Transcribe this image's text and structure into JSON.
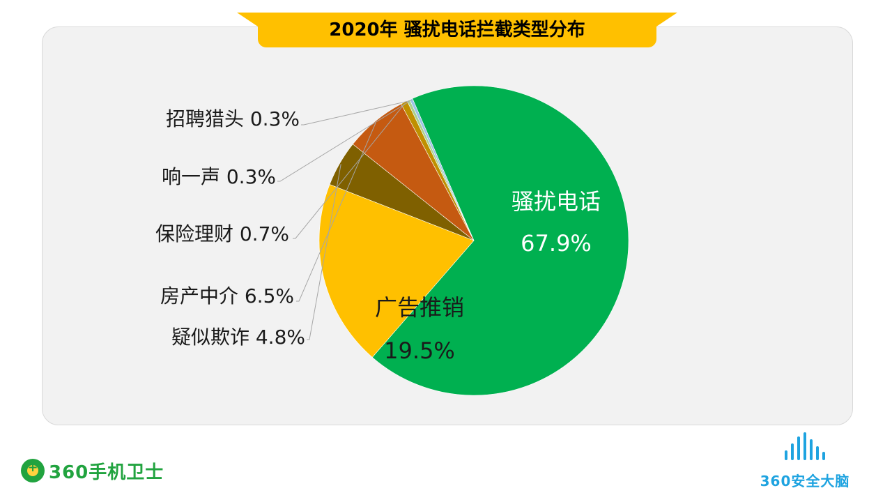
{
  "title": "2020年 骚扰电话拦截类型分布",
  "colors": {
    "title_bg": "#ffc000",
    "panel_bg": "#f2f2f2",
    "brand_green": "#21a33f",
    "brand_blue": "#1ea3e0"
  },
  "chart_data": {
    "type": "pie",
    "slices": [
      {
        "label": "骚扰电话",
        "value": 67.9,
        "value_text": "67.9%",
        "color": "#00b050",
        "label_style": "inside-light"
      },
      {
        "label": "广告推销",
        "value": 19.5,
        "value_text": "19.5%",
        "color": "#ffc000",
        "label_style": "inside-dark"
      },
      {
        "label": "疑似欺诈",
        "value": 4.8,
        "value_text": "4.8%",
        "color": "#7f6000",
        "label_style": "outside"
      },
      {
        "label": "房产中介",
        "value": 6.5,
        "value_text": "6.5%",
        "color": "#c55a11",
        "label_style": "outside"
      },
      {
        "label": "保险理财",
        "value": 0.7,
        "value_text": "0.7%",
        "color": "#bf9000",
        "label_style": "outside"
      },
      {
        "label": "响一声",
        "value": 0.3,
        "value_text": "0.3%",
        "color": "#a9d18e",
        "label_style": "outside"
      },
      {
        "label": "招聘猎头",
        "value": 0.3,
        "value_text": "0.3%",
        "color": "#9dc3e6",
        "label_style": "outside"
      }
    ]
  },
  "branding": {
    "left": "360手机卫士",
    "right": "360安全大脑"
  }
}
